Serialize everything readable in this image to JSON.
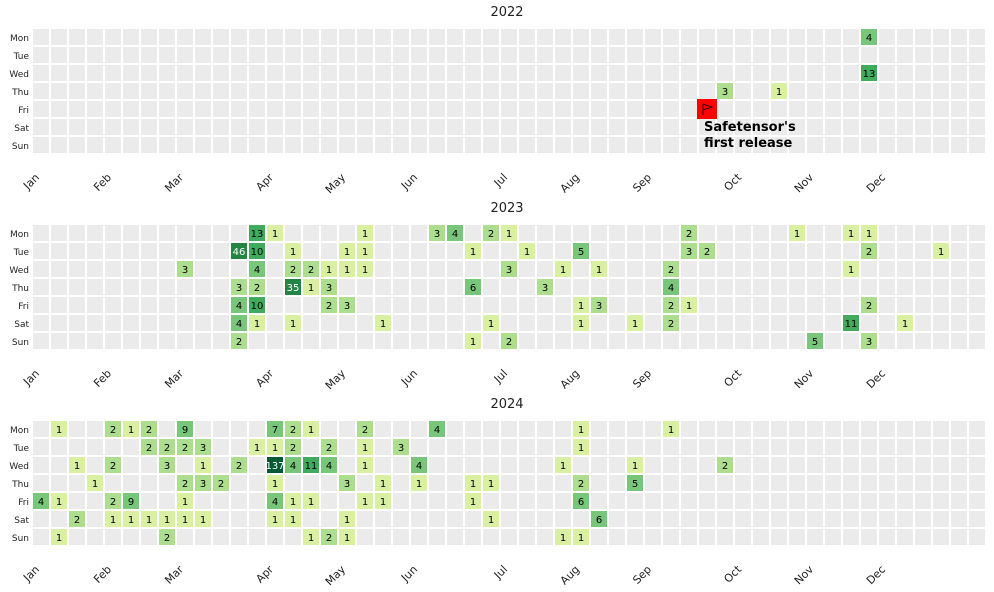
{
  "chart_data": {
    "type": "heatmap",
    "days": [
      "Mon",
      "Tue",
      "Wed",
      "Thu",
      "Fri",
      "Sat",
      "Sun"
    ],
    "months": [
      "Jan",
      "Feb",
      "Mar",
      "Apr",
      "May",
      "Jun",
      "Jul",
      "Aug",
      "Sep",
      "Oct",
      "Nov",
      "Dec"
    ],
    "month_week_index": [
      0,
      4,
      8,
      13,
      17,
      21,
      26,
      30,
      34,
      39,
      43,
      47
    ],
    "weeks": 53,
    "colors": {
      "empty": "#ebebeb",
      "low": "#d9f0a3",
      "mid": "#addd8e",
      "high": "#78c679",
      "higher": "#41ab5d",
      "top": "#238443",
      "max": "#005a32",
      "highlight": "#ff0000"
    },
    "years": [
      {
        "title": "2022",
        "cells": [
          [
            46,
            0,
            4
          ],
          [
            46,
            2,
            13
          ],
          [
            38,
            3,
            3
          ],
          [
            41,
            3,
            1
          ]
        ],
        "flag": {
          "week": 37,
          "day": 4,
          "label_line1": "Safetensor's",
          "label_line2": "first release"
        }
      },
      {
        "title": "2023",
        "cells": [
          [
            11,
            1,
            46
          ],
          [
            8,
            2,
            3
          ],
          [
            11,
            3,
            3
          ],
          [
            11,
            4,
            4
          ],
          [
            11,
            5,
            4
          ],
          [
            11,
            6,
            2
          ],
          [
            12,
            0,
            13
          ],
          [
            12,
            1,
            10
          ],
          [
            12,
            2,
            4
          ],
          [
            12,
            3,
            2
          ],
          [
            12,
            4,
            10
          ],
          [
            12,
            5,
            1
          ],
          [
            13,
            0,
            1
          ],
          [
            14,
            1,
            1
          ],
          [
            14,
            2,
            2
          ],
          [
            14,
            3,
            35
          ],
          [
            14,
            5,
            1
          ],
          [
            15,
            2,
            2
          ],
          [
            15,
            3,
            1
          ],
          [
            16,
            2,
            1
          ],
          [
            16,
            3,
            3
          ],
          [
            16,
            4,
            2
          ],
          [
            17,
            1,
            1
          ],
          [
            17,
            2,
            1
          ],
          [
            17,
            4,
            3
          ],
          [
            18,
            0,
            1
          ],
          [
            18,
            1,
            1
          ],
          [
            18,
            2,
            1
          ],
          [
            19,
            5,
            1
          ],
          [
            22,
            0,
            3
          ],
          [
            23,
            0,
            4
          ],
          [
            24,
            1,
            1
          ],
          [
            24,
            3,
            6
          ],
          [
            24,
            6,
            1
          ],
          [
            25,
            0,
            2
          ],
          [
            25,
            5,
            1
          ],
          [
            26,
            0,
            1
          ],
          [
            26,
            2,
            3
          ],
          [
            26,
            6,
            2
          ],
          [
            27,
            1,
            1
          ],
          [
            28,
            3,
            3
          ],
          [
            29,
            2,
            1
          ],
          [
            30,
            1,
            5
          ],
          [
            30,
            4,
            1
          ],
          [
            30,
            5,
            1
          ],
          [
            31,
            2,
            1
          ],
          [
            31,
            4,
            3
          ],
          [
            33,
            5,
            1
          ],
          [
            35,
            2,
            2
          ],
          [
            35,
            3,
            4
          ],
          [
            35,
            4,
            2
          ],
          [
            35,
            5,
            2
          ],
          [
            36,
            0,
            2
          ],
          [
            36,
            1,
            3
          ],
          [
            36,
            4,
            1
          ],
          [
            37,
            1,
            2
          ],
          [
            42,
            0,
            1
          ],
          [
            43,
            6,
            5
          ],
          [
            45,
            0,
            1
          ],
          [
            45,
            2,
            1
          ],
          [
            45,
            5,
            11
          ],
          [
            46,
            0,
            1
          ],
          [
            46,
            1,
            2
          ],
          [
            46,
            4,
            2
          ],
          [
            46,
            6,
            3
          ],
          [
            48,
            5,
            1
          ],
          [
            50,
            1,
            1
          ]
        ]
      },
      {
        "title": "2024",
        "cells": [
          [
            0,
            4,
            4
          ],
          [
            1,
            0,
            1
          ],
          [
            1,
            4,
            1
          ],
          [
            1,
            6,
            1
          ],
          [
            2,
            2,
            1
          ],
          [
            2,
            5,
            2
          ],
          [
            3,
            3,
            1
          ],
          [
            4,
            0,
            2
          ],
          [
            4,
            2,
            2
          ],
          [
            4,
            4,
            2
          ],
          [
            4,
            5,
            1
          ],
          [
            5,
            0,
            1
          ],
          [
            5,
            4,
            9
          ],
          [
            5,
            5,
            1
          ],
          [
            6,
            0,
            2
          ],
          [
            6,
            1,
            2
          ],
          [
            6,
            5,
            1
          ],
          [
            7,
            1,
            2
          ],
          [
            7,
            2,
            3
          ],
          [
            7,
            5,
            1
          ],
          [
            7,
            6,
            2
          ],
          [
            8,
            0,
            9
          ],
          [
            8,
            1,
            2
          ],
          [
            8,
            3,
            2
          ],
          [
            8,
            4,
            1
          ],
          [
            8,
            5,
            1
          ],
          [
            9,
            1,
            3
          ],
          [
            9,
            2,
            1
          ],
          [
            9,
            3,
            3
          ],
          [
            9,
            5,
            1
          ],
          [
            10,
            3,
            2
          ],
          [
            11,
            2,
            2
          ],
          [
            12,
            1,
            1
          ],
          [
            13,
            0,
            7
          ],
          [
            13,
            1,
            1
          ],
          [
            13,
            2,
            137
          ],
          [
            13,
            3,
            1
          ],
          [
            13,
            4,
            4
          ],
          [
            13,
            5,
            1
          ],
          [
            14,
            0,
            2
          ],
          [
            14,
            1,
            2
          ],
          [
            14,
            2,
            4
          ],
          [
            14,
            4,
            1
          ],
          [
            14,
            5,
            1
          ],
          [
            15,
            0,
            1
          ],
          [
            15,
            2,
            11
          ],
          [
            15,
            4,
            1
          ],
          [
            15,
            6,
            1
          ],
          [
            16,
            1,
            2
          ],
          [
            16,
            2,
            4
          ],
          [
            16,
            6,
            2
          ],
          [
            17,
            3,
            3
          ],
          [
            17,
            5,
            1
          ],
          [
            17,
            6,
            1
          ],
          [
            18,
            0,
            2
          ],
          [
            18,
            1,
            1
          ],
          [
            18,
            2,
            1
          ],
          [
            18,
            4,
            1
          ],
          [
            19,
            3,
            1
          ],
          [
            19,
            4,
            1
          ],
          [
            20,
            1,
            3
          ],
          [
            21,
            2,
            4
          ],
          [
            21,
            3,
            1
          ],
          [
            22,
            0,
            4
          ],
          [
            24,
            3,
            1
          ],
          [
            24,
            4,
            1
          ],
          [
            25,
            3,
            1
          ],
          [
            25,
            5,
            1
          ],
          [
            29,
            2,
            1
          ],
          [
            29,
            6,
            1
          ],
          [
            30,
            0,
            1
          ],
          [
            30,
            1,
            1
          ],
          [
            30,
            3,
            2
          ],
          [
            30,
            4,
            6
          ],
          [
            30,
            6,
            1
          ],
          [
            31,
            5,
            6
          ],
          [
            33,
            2,
            1
          ],
          [
            33,
            3,
            5
          ],
          [
            35,
            0,
            1
          ],
          [
            38,
            2,
            2
          ]
        ]
      }
    ]
  }
}
